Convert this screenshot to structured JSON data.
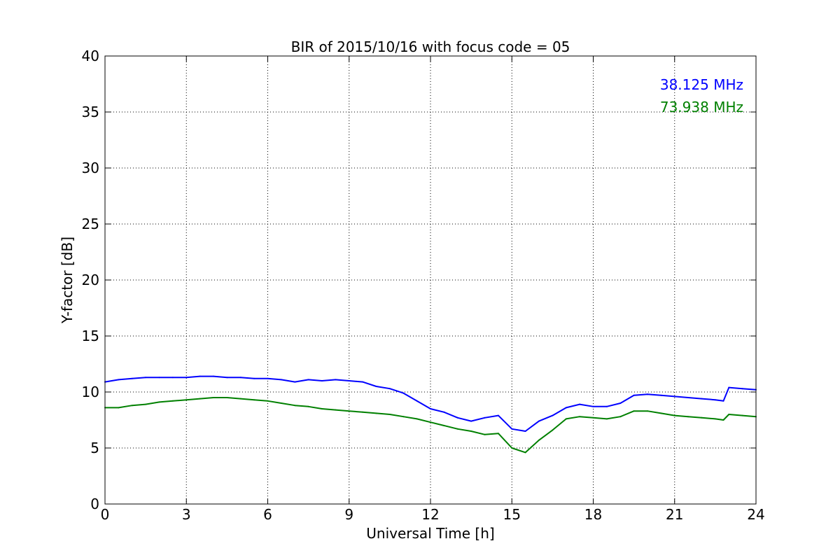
{
  "chart_data": {
    "type": "line",
    "title": "BIR of 2015/10/16 with focus code = 05",
    "xlabel": "Universal Time [h]",
    "ylabel": "Y-factor [dB]",
    "xlim": [
      0,
      24
    ],
    "ylim": [
      0,
      40
    ],
    "xticks": [
      0,
      3,
      6,
      9,
      12,
      15,
      18,
      21,
      24
    ],
    "yticks": [
      0,
      5,
      10,
      15,
      20,
      25,
      30,
      35,
      40
    ],
    "xtick_labels": [
      "0",
      "3",
      "6",
      "9",
      "12",
      "15",
      "18",
      "21",
      "24"
    ],
    "ytick_labels": [
      "0",
      "5",
      "10",
      "15",
      "20",
      "25",
      "30",
      "35",
      "40"
    ],
    "grid": true,
    "legend_position": "top-right",
    "series": [
      {
        "name": "38.125 MHz",
        "color": "#0000ff",
        "x": [
          0.0,
          0.5,
          1.0,
          1.5,
          2.0,
          2.5,
          3.0,
          3.5,
          4.0,
          4.5,
          5.0,
          5.5,
          6.0,
          6.5,
          7.0,
          7.5,
          8.0,
          8.5,
          9.0,
          9.5,
          10.0,
          10.5,
          11.0,
          11.5,
          12.0,
          12.5,
          13.0,
          13.5,
          14.0,
          14.5,
          15.0,
          15.5,
          16.0,
          16.5,
          17.0,
          17.5,
          18.0,
          18.5,
          19.0,
          19.5,
          20.0,
          20.5,
          21.0,
          21.5,
          22.0,
          22.5,
          22.8,
          23.0,
          23.5,
          24.0
        ],
        "y": [
          10.9,
          11.1,
          11.2,
          11.3,
          11.3,
          11.3,
          11.3,
          11.4,
          11.4,
          11.3,
          11.3,
          11.2,
          11.2,
          11.1,
          10.9,
          11.1,
          11.0,
          11.1,
          11.0,
          10.9,
          10.5,
          10.3,
          9.9,
          9.2,
          8.5,
          8.2,
          7.7,
          7.4,
          7.7,
          7.9,
          6.7,
          6.5,
          7.4,
          7.9,
          8.6,
          8.9,
          8.7,
          8.7,
          9.0,
          9.7,
          9.8,
          9.7,
          9.6,
          9.5,
          9.4,
          9.3,
          9.2,
          10.4,
          10.3,
          10.2
        ]
      },
      {
        "name": "73.938 MHz",
        "color": "#008000",
        "x": [
          0.0,
          0.5,
          1.0,
          1.5,
          2.0,
          2.5,
          3.0,
          3.5,
          4.0,
          4.5,
          5.0,
          5.5,
          6.0,
          6.5,
          7.0,
          7.5,
          8.0,
          8.5,
          9.0,
          9.5,
          10.0,
          10.5,
          11.0,
          11.5,
          12.0,
          12.5,
          13.0,
          13.5,
          14.0,
          14.5,
          15.0,
          15.5,
          16.0,
          16.5,
          17.0,
          17.5,
          18.0,
          18.5,
          19.0,
          19.5,
          20.0,
          20.5,
          21.0,
          21.5,
          22.0,
          22.5,
          22.8,
          23.0,
          23.5,
          24.0
        ],
        "y": [
          8.6,
          8.6,
          8.8,
          8.9,
          9.1,
          9.2,
          9.3,
          9.4,
          9.5,
          9.5,
          9.4,
          9.3,
          9.2,
          9.0,
          8.8,
          8.7,
          8.5,
          8.4,
          8.3,
          8.2,
          8.1,
          8.0,
          7.8,
          7.6,
          7.3,
          7.0,
          6.7,
          6.5,
          6.2,
          6.3,
          5.0,
          4.6,
          5.7,
          6.6,
          7.6,
          7.8,
          7.7,
          7.6,
          7.8,
          8.3,
          8.3,
          8.1,
          7.9,
          7.8,
          7.7,
          7.6,
          7.5,
          8.0,
          7.9,
          7.8
        ]
      }
    ]
  }
}
